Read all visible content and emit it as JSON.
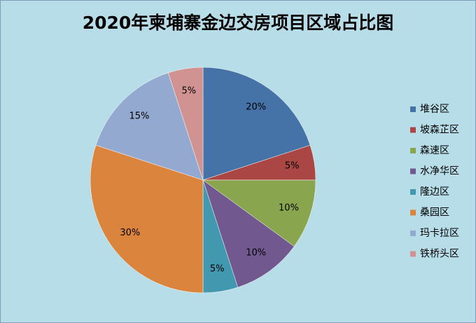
{
  "chart_data": {
    "type": "pie",
    "title": "2020年柬埔寨金边交房项目区域占比图",
    "categories": [
      "堆谷区",
      "坡森芷区",
      "森速区",
      "水净华区",
      "隆边区",
      "桑园区",
      "玛卡拉区",
      "铁桥头区"
    ],
    "values": [
      20,
      5,
      10,
      10,
      5,
      30,
      15,
      5
    ],
    "value_labels": [
      "20%",
      "5%",
      "10%",
      "10%",
      "5%",
      "30%",
      "15%",
      "5%"
    ],
    "colors": [
      "#4572a7",
      "#aa4643",
      "#89a54e",
      "#71588f",
      "#4198af",
      "#db843d",
      "#93a9cf",
      "#d19392"
    ],
    "legend": "right"
  }
}
